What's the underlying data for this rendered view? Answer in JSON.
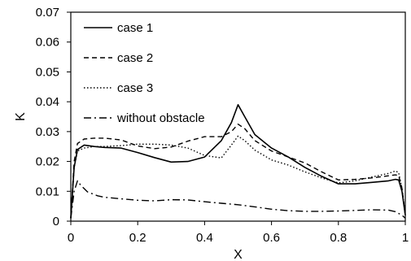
{
  "chart_data": {
    "type": "line",
    "title": "",
    "xlabel": "X",
    "ylabel": "K",
    "xlim": [
      0,
      1
    ],
    "ylim": [
      0,
      0.07
    ],
    "x_ticks": [
      0,
      0.2,
      0.4,
      0.6,
      0.8,
      1
    ],
    "x_tick_labels": [
      "0",
      "0.2",
      "0.4",
      "0.6",
      "0.8",
      "1"
    ],
    "y_ticks": [
      0,
      0.01,
      0.02,
      0.03,
      0.04,
      0.05,
      0.06,
      0.07
    ],
    "y_tick_labels": [
      "0",
      "0.01",
      "0.02",
      "0.03",
      "0.04",
      "0.05",
      "0.06",
      "0.07"
    ],
    "grid": false,
    "legend_position": "top-left",
    "series": [
      {
        "name": "case 1",
        "dash": "solid",
        "x": [
          0,
          0.01,
          0.02,
          0.04,
          0.07,
          0.1,
          0.15,
          0.2,
          0.25,
          0.3,
          0.35,
          0.4,
          0.45,
          0.48,
          0.5,
          0.52,
          0.55,
          0.6,
          0.65,
          0.7,
          0.75,
          0.8,
          0.85,
          0.9,
          0.95,
          0.97,
          0.98,
          0.99,
          1.0
        ],
        "y": [
          0.001,
          0.018,
          0.024,
          0.0255,
          0.025,
          0.0247,
          0.0245,
          0.023,
          0.0213,
          0.0198,
          0.02,
          0.0215,
          0.027,
          0.033,
          0.039,
          0.035,
          0.029,
          0.0245,
          0.0215,
          0.018,
          0.015,
          0.0125,
          0.0125,
          0.013,
          0.0135,
          0.014,
          0.0138,
          0.01,
          0.002
        ]
      },
      {
        "name": "case 2",
        "dash": "dash",
        "x": [
          0,
          0.01,
          0.02,
          0.04,
          0.07,
          0.1,
          0.15,
          0.2,
          0.25,
          0.3,
          0.35,
          0.4,
          0.45,
          0.48,
          0.5,
          0.52,
          0.55,
          0.6,
          0.65,
          0.7,
          0.75,
          0.8,
          0.85,
          0.9,
          0.95,
          0.97,
          0.98,
          0.99,
          1.0
        ],
        "y": [
          0.001,
          0.02,
          0.026,
          0.0275,
          0.0278,
          0.0278,
          0.0272,
          0.0252,
          0.0243,
          0.0248,
          0.0268,
          0.0283,
          0.0283,
          0.03,
          0.0325,
          0.031,
          0.027,
          0.0235,
          0.0215,
          0.0195,
          0.0165,
          0.0138,
          0.014,
          0.0145,
          0.0152,
          0.0155,
          0.0153,
          0.011,
          0.002
        ]
      },
      {
        "name": "case 3",
        "dash": "dot",
        "x": [
          0,
          0.01,
          0.02,
          0.04,
          0.07,
          0.1,
          0.15,
          0.2,
          0.25,
          0.3,
          0.35,
          0.4,
          0.45,
          0.48,
          0.5,
          0.52,
          0.55,
          0.6,
          0.65,
          0.7,
          0.75,
          0.8,
          0.85,
          0.9,
          0.95,
          0.97,
          0.98,
          0.99,
          1.0
        ],
        "y": [
          0.001,
          0.018,
          0.0235,
          0.0245,
          0.025,
          0.025,
          0.0253,
          0.0258,
          0.0258,
          0.0255,
          0.0245,
          0.022,
          0.0212,
          0.0255,
          0.0285,
          0.027,
          0.0238,
          0.0205,
          0.0188,
          0.0165,
          0.0145,
          0.0128,
          0.0135,
          0.0148,
          0.016,
          0.0168,
          0.0163,
          0.011,
          0.002
        ]
      },
      {
        "name": "without obstacle",
        "dash": "dashdot",
        "x": [
          0,
          0.01,
          0.02,
          0.03,
          0.05,
          0.08,
          0.1,
          0.15,
          0.2,
          0.25,
          0.3,
          0.35,
          0.4,
          0.45,
          0.5,
          0.55,
          0.6,
          0.65,
          0.7,
          0.75,
          0.8,
          0.85,
          0.9,
          0.95,
          0.97,
          0.99,
          1.0
        ],
        "y": [
          0.001,
          0.01,
          0.0135,
          0.012,
          0.0098,
          0.0085,
          0.008,
          0.0075,
          0.007,
          0.0068,
          0.0072,
          0.0071,
          0.0065,
          0.006,
          0.0055,
          0.0048,
          0.004,
          0.0035,
          0.0033,
          0.0033,
          0.0034,
          0.0036,
          0.0038,
          0.0037,
          0.0032,
          0.002,
          0.001
        ]
      }
    ]
  }
}
